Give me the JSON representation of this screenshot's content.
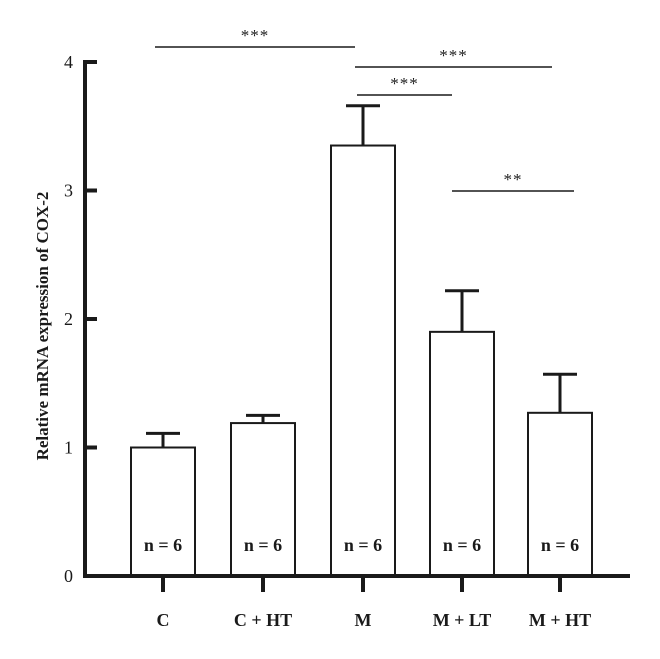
{
  "chart_data": {
    "type": "bar",
    "categories": [
      "C",
      "C + HT",
      "M",
      "M + LT",
      "M + HT"
    ],
    "values": [
      1.0,
      1.19,
      3.35,
      1.9,
      1.27
    ],
    "errors": [
      0.11,
      0.06,
      0.31,
      0.32,
      0.3
    ],
    "bar_labels": [
      "n = 6",
      "n = 6",
      "n = 6",
      "n = 6",
      "n = 6"
    ],
    "ylabel": "Relative mRNA expression of COX-2",
    "xlabel": "",
    "ylim": [
      0,
      4
    ],
    "yticks": [
      0,
      1,
      2,
      3,
      4
    ],
    "ytick_labels": [
      "0",
      "1",
      "2",
      "3",
      "4"
    ],
    "significance": [
      {
        "from": "C",
        "to": "M",
        "label": "***"
      },
      {
        "from": "M",
        "to": "M + HT",
        "label": "***"
      },
      {
        "from": "M",
        "to": "M + LT",
        "label": "***"
      },
      {
        "from": "M + LT",
        "to": "M + HT",
        "label": "**"
      }
    ],
    "grid": false,
    "colors": {
      "bar_fill": "#ffffff",
      "stroke": "#1a1a1a"
    }
  }
}
